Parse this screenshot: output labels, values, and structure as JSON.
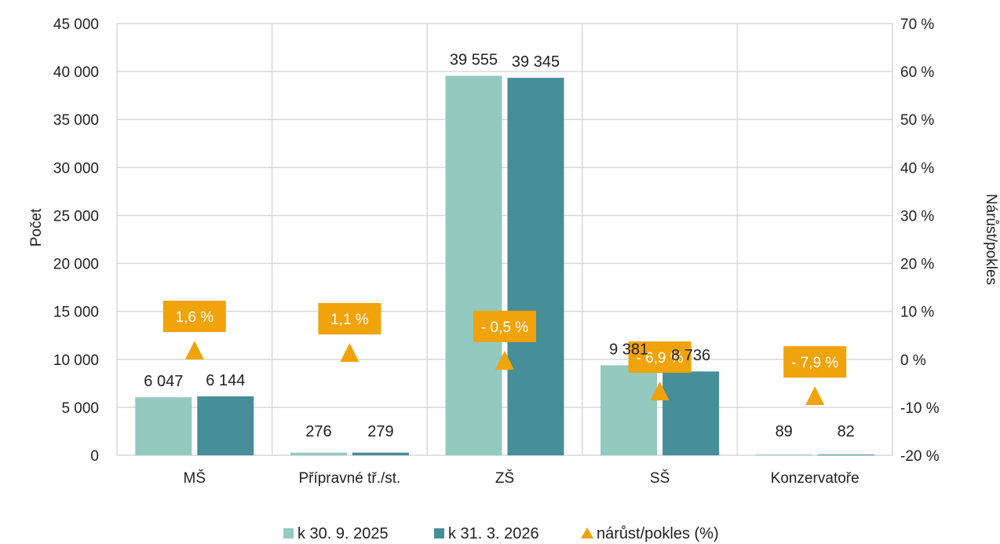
{
  "chart_data": {
    "type": "bar",
    "categories": [
      "MŠ",
      "Přípravné tř./st.",
      "ZŠ",
      "SŠ",
      "Konzervatoře"
    ],
    "series": [
      {
        "name": "k 30. 9. 2025",
        "values": [
          6047,
          276,
          39555,
          9381,
          89
        ],
        "labels": [
          "6 047",
          "276",
          "39 555",
          "9 381",
          "89"
        ],
        "color": "#93c9bf"
      },
      {
        "name": "k 31. 3. 2026",
        "values": [
          6144,
          279,
          39345,
          8736,
          82
        ],
        "labels": [
          "6 144",
          "279",
          "39 345",
          "8 736",
          "82"
        ],
        "color": "#468e98"
      }
    ],
    "change_series": {
      "name": "nárůst/pokles (%)",
      "values": [
        1.6,
        1.1,
        -0.5,
        -6.9,
        -7.9
      ],
      "labels": [
        "1,6 %",
        "1,1 %",
        "- 0,5 %",
        "- 6,9 %",
        "- 7,9 %"
      ],
      "color": "#f0a30a",
      "marker": "triangle"
    },
    "ylabel": "Počet",
    "y2label": "Nárůst/pokles",
    "ylim": [
      0,
      45000
    ],
    "y2lim": [
      -20,
      70
    ],
    "yticks": [
      "0",
      "5 000",
      "10 000",
      "15 000",
      "20 000",
      "25 000",
      "30 000",
      "35 000",
      "40 000",
      "45 000"
    ],
    "y2ticks": [
      "-20 %",
      "-10 %",
      "0 %",
      "10 %",
      "20 %",
      "30 %",
      "40 %",
      "50 %",
      "60 %",
      "70 %"
    ],
    "grid": true,
    "legend_position": "bottom"
  }
}
